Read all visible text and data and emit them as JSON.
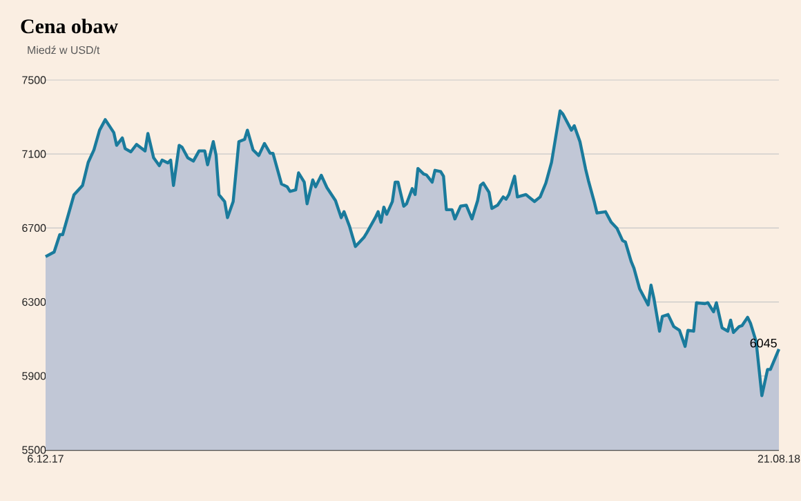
{
  "chart_data": {
    "type": "area",
    "title": "Cena obaw",
    "subtitle": "Miedź w USD/t",
    "x": [
      "2017-12-06",
      "2017-12-09",
      "2017-12-11",
      "2017-12-12",
      "2017-12-16",
      "2017-12-19",
      "2017-12-21",
      "2017-12-23",
      "2017-12-25",
      "2017-12-27",
      "2017-12-30",
      "2017-12-31",
      "2018-01-02",
      "2018-01-03",
      "2018-01-05",
      "2018-01-07",
      "2018-01-10",
      "2018-01-11",
      "2018-01-13",
      "2018-01-15",
      "2018-01-16",
      "2018-01-18",
      "2018-01-19",
      "2018-01-20",
      "2018-01-22",
      "2018-01-23",
      "2018-01-25",
      "2018-01-27",
      "2018-01-29",
      "2018-01-31",
      "2018-02-01",
      "2018-02-03",
      "2018-02-04",
      "2018-02-05",
      "2018-02-07",
      "2018-02-08",
      "2018-02-10",
      "2018-02-12",
      "2018-02-14",
      "2018-02-15",
      "2018-02-17",
      "2018-02-19",
      "2018-02-21",
      "2018-02-23",
      "2018-02-24",
      "2018-02-27",
      "2018-03-01",
      "2018-03-02",
      "2018-03-04",
      "2018-03-05",
      "2018-03-07",
      "2018-03-08",
      "2018-03-10",
      "2018-03-11",
      "2018-03-13",
      "2018-03-15",
      "2018-03-18",
      "2018-03-20",
      "2018-03-21",
      "2018-03-23",
      "2018-03-25",
      "2018-03-28",
      "2018-03-29",
      "2018-04-01",
      "2018-04-02",
      "2018-04-03",
      "2018-04-04",
      "2018-04-05",
      "2018-04-07",
      "2018-04-08",
      "2018-04-09",
      "2018-04-11",
      "2018-04-12",
      "2018-04-14",
      "2018-04-15",
      "2018-04-16",
      "2018-04-18",
      "2018-04-19",
      "2018-04-21",
      "2018-04-22",
      "2018-04-24",
      "2018-04-25",
      "2018-04-26",
      "2018-04-28",
      "2018-04-29",
      "2018-05-01",
      "2018-05-03",
      "2018-05-05",
      "2018-05-07",
      "2018-05-08",
      "2018-05-09",
      "2018-05-11",
      "2018-05-12",
      "2018-05-14",
      "2018-05-16",
      "2018-05-17",
      "2018-05-18",
      "2018-05-20",
      "2018-05-21",
      "2018-05-24",
      "2018-05-25",
      "2018-05-27",
      "2018-05-29",
      "2018-05-31",
      "2018-06-02",
      "2018-06-05",
      "2018-06-06",
      "2018-06-09",
      "2018-06-10",
      "2018-06-12",
      "2018-06-14",
      "2018-06-15",
      "2018-06-17",
      "2018-06-18",
      "2018-06-21",
      "2018-06-23",
      "2018-06-25",
      "2018-06-27",
      "2018-06-28",
      "2018-06-30",
      "2018-07-01",
      "2018-07-03",
      "2018-07-06",
      "2018-07-07",
      "2018-07-08",
      "2018-07-10",
      "2018-07-11",
      "2018-07-13",
      "2018-07-15",
      "2018-07-17",
      "2018-07-19",
      "2018-07-20",
      "2018-07-22",
      "2018-07-23",
      "2018-07-26",
      "2018-07-27",
      "2018-07-29",
      "2018-07-30",
      "2018-08-01",
      "2018-08-03",
      "2018-08-04",
      "2018-08-05",
      "2018-08-07",
      "2018-08-08",
      "2018-08-10",
      "2018-08-11",
      "2018-08-13",
      "2018-08-15",
      "2018-08-17",
      "2018-08-18",
      "2018-08-21"
    ],
    "series": [
      {
        "color": "#1a7b9c",
        "values": [
          6545,
          6570,
          6664,
          6664,
          6880,
          6930,
          7055,
          7122,
          7229,
          7286,
          7216,
          7147,
          7187,
          7129,
          7112,
          7152,
          7117,
          7211,
          7080,
          7037,
          7067,
          7052,
          7067,
          6930,
          7147,
          7137,
          7080,
          7062,
          7117,
          7117,
          7042,
          7167,
          7092,
          6880,
          6843,
          6756,
          6843,
          7167,
          7179,
          7229,
          7122,
          7092,
          7157,
          7104,
          7104,
          6938,
          6923,
          6898,
          6906,
          6998,
          6948,
          6831,
          6960,
          6923,
          6985,
          6918,
          6848,
          6756,
          6788,
          6706,
          6600,
          6649,
          6674,
          6756,
          6788,
          6731,
          6813,
          6774,
          6843,
          6948,
          6948,
          6818,
          6831,
          6913,
          6881,
          7022,
          6992,
          6987,
          6948,
          7012,
          7005,
          6980,
          6799,
          6799,
          6749,
          6818,
          6823,
          6749,
          6848,
          6930,
          6943,
          6893,
          6806,
          6823,
          6868,
          6856,
          6881,
          6980,
          6868,
          6881,
          6868,
          6843,
          6868,
          6943,
          7055,
          7333,
          7316,
          7229,
          7253,
          7167,
          7018,
          6955,
          6843,
          6781,
          6788,
          6731,
          6699,
          6632,
          6624,
          6520,
          6483,
          6371,
          6284,
          6391,
          6321,
          6142,
          6222,
          6232,
          6167,
          6147,
          6060,
          6147,
          6142,
          6296,
          6291,
          6296,
          6247,
          6296,
          6160,
          6142,
          6202,
          6135,
          6167,
          6172,
          6217,
          6185,
          6085,
          5794,
          5935,
          5935,
          6045
        ]
      }
    ],
    "xlim": [
      "2017-12-06",
      "2018-08-21"
    ],
    "xticks": [
      {
        "value": "2017-12-06",
        "label": "6.12.17"
      },
      {
        "value": "2018-08-21",
        "label": "21.08.18"
      }
    ],
    "ylim": [
      5500,
      7500
    ],
    "yticks": [
      5500,
      5900,
      6300,
      6700,
      7100,
      7500
    ],
    "grid": "y",
    "annotations": [
      {
        "text": "6045",
        "x": "2018-08-21",
        "y": 6045
      }
    ]
  }
}
